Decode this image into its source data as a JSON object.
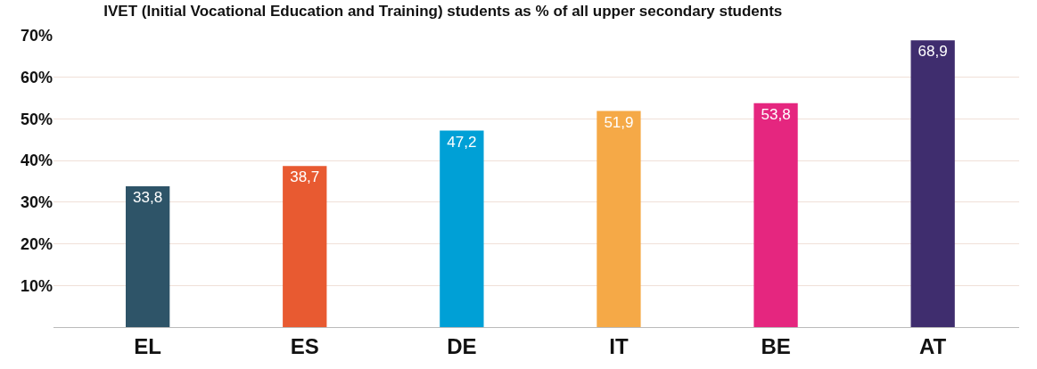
{
  "chart_data": {
    "type": "bar",
    "title": "IVET (Initial Vocational Education and Training) students as % of all upper secondary students",
    "categories": [
      "EL",
      "ES",
      "DE",
      "IT",
      "BE",
      "AT"
    ],
    "values": [
      33.8,
      38.7,
      47.2,
      51.9,
      53.8,
      68.9
    ],
    "value_labels": [
      "33,8",
      "38,7",
      "47,2",
      "51,9",
      "53,8",
      "68,9"
    ],
    "colors": [
      "#2e5468",
      "#e85a31",
      "#00a0d6",
      "#f5a947",
      "#e5267f",
      "#3f2d6e"
    ],
    "ylim": [
      0,
      70
    ],
    "yticks": [
      {
        "value": 10,
        "label": "10%"
      },
      {
        "value": 20,
        "label": "20%"
      },
      {
        "value": 30,
        "label": "30%"
      },
      {
        "value": 40,
        "label": "40%"
      },
      {
        "value": 50,
        "label": "50%"
      },
      {
        "value": 60,
        "label": "60%"
      },
      {
        "value": 70,
        "label": "70%"
      }
    ],
    "grid": "y",
    "legend": false
  }
}
